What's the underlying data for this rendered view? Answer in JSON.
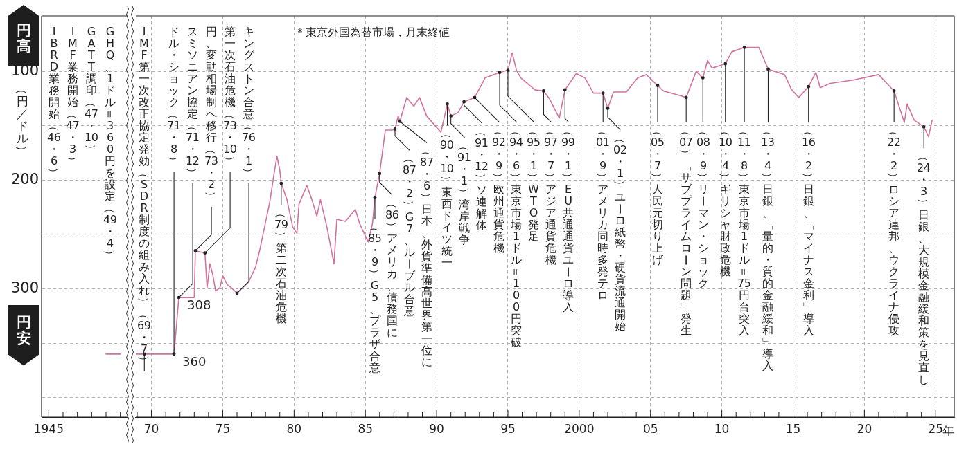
{
  "chart_data": [
    {
      "type": "line",
      "color": "#d4729f",
      "ylabel": "（円／ドル）",
      "categories": [
        "1945",
        null,
        null,
        null,
        null,
        null
      ],
      "ylim": [
        418,
        49
      ],
      "grid": "y",
      "yticks": [
        100,
        {
          "value": 150,
          "label": null
        },
        200,
        {
          "value": 250,
          "label": null
        },
        300,
        {
          "value": 350,
          "label": null
        },
        {
          "value": 400,
          "label": null
        }
      ],
      "values": [
        null,
        null,
        null,
        null,
        360,
        360
      ],
      "annotations": [
        "円高",
        "円安",
        "IBRD業務開始（46・6）",
        "IMF業務開始（47・3）",
        "GATT調印（47・10）",
        "GHQ、1ドル＝360円を設定（49・4）"
      ]
    },
    {
      "type": "line",
      "color": "#d4729f",
      "tick_labels": "x",
      "xlim": [
        1968.9,
        2026.3
      ],
      "ylim": [
        418,
        49
      ],
      "grid": true,
      "xticks": [
        {
          "value": 1969,
          "label": null
        },
        {
          "value": 1970,
          "label": "70"
        },
        {
          "value": 1971,
          "label": null
        },
        {
          "value": 1972,
          "label": null
        },
        {
          "value": 1973,
          "label": null
        },
        {
          "value": 1974,
          "label": null
        },
        {
          "value": 1975,
          "label": "75"
        },
        {
          "value": 1976,
          "label": null
        },
        {
          "value": 1977,
          "label": null
        },
        {
          "value": 1978,
          "label": null
        },
        {
          "value": 1979,
          "label": null
        },
        {
          "value": 1980,
          "label": "80"
        },
        {
          "value": 1981,
          "label": null
        },
        {
          "value": 1982,
          "label": null
        },
        {
          "value": 1983,
          "label": null
        },
        {
          "value": 1984,
          "label": null
        },
        {
          "value": 1985,
          "label": "85"
        },
        {
          "value": 1986,
          "label": null
        },
        {
          "value": 1987,
          "label": null
        },
        {
          "value": 1988,
          "label": null
        },
        {
          "value": 1989,
          "label": null
        },
        {
          "value": 1990,
          "label": "90"
        },
        {
          "value": 1991,
          "label": null
        },
        {
          "value": 1992,
          "label": null
        },
        {
          "value": 1993,
          "label": null
        },
        {
          "value": 1994,
          "label": null
        },
        {
          "value": 1995,
          "label": "95"
        },
        {
          "value": 1996,
          "label": null
        },
        {
          "value": 1997,
          "label": null
        },
        {
          "value": 1998,
          "label": null
        },
        {
          "value": 1999,
          "label": null
        },
        2000,
        {
          "value": 2001,
          "label": null
        },
        {
          "value": 2002,
          "label": null
        },
        {
          "value": 2003,
          "label": null
        },
        {
          "value": 2004,
          "label": null
        },
        {
          "value": 2005,
          "label": "05"
        },
        {
          "value": 2006,
          "label": null
        },
        {
          "value": 2007,
          "label": null
        },
        {
          "value": 2008,
          "label": null
        },
        {
          "value": 2009,
          "label": null
        },
        {
          "value": 2010,
          "label": "10"
        },
        {
          "value": 2011,
          "label": null
        },
        {
          "value": 2012,
          "label": null
        },
        {
          "value": 2013,
          "label": null
        },
        {
          "value": 2014,
          "label": null
        },
        {
          "value": 2015,
          "label": "15"
        },
        {
          "value": 2016,
          "label": null
        },
        {
          "value": 2017,
          "label": null
        },
        {
          "value": 2018,
          "label": null
        },
        {
          "value": 2019,
          "label": null
        },
        {
          "value": 2020,
          "label": "20"
        },
        {
          "value": 2021,
          "label": null
        },
        {
          "value": 2022,
          "label": null
        },
        {
          "value": 2023,
          "label": null
        },
        {
          "value": 2024,
          "label": null
        },
        {
          "value": 2025,
          "label": "25"
        }
      ],
      "xlabel": "年",
      "yticks": [
        100,
        {
          "value": 150,
          "label": null
        },
        200,
        {
          "value": 250,
          "label": null
        },
        300,
        {
          "value": 350,
          "label": null
        },
        {
          "value": 400,
          "label": null
        }
      ],
      "x": [
        1968.9,
        1971.58,
        1971.92,
        1973.0,
        1973.08,
        1973.75,
        1973.9,
        1974.1,
        1974.3,
        1974.5,
        1974.8,
        1975.0,
        1975.3,
        1975.6,
        1976.0,
        1976.3,
        1976.8,
        1977.3,
        1977.6,
        1977.9,
        1978.3,
        1978.6,
        1978.8,
        1979.0,
        1979.1,
        1979.5,
        1979.9,
        1980.2,
        1980.35,
        1980.9,
        1981.25,
        1981.6,
        1981.85,
        1982.3,
        1982.8,
        1983.0,
        1983.6,
        1984.3,
        1984.6,
        1985.2,
        1985.5,
        1985.67,
        1986.0,
        1986.4,
        1986.9,
        1987.08,
        1987.3,
        1987.42,
        1987.9,
        1988.4,
        1988.8,
        1989.3,
        1990.3,
        1990.75,
        1991.0,
        1991.5,
        1991.92,
        1992.67,
        1993.4,
        1994.42,
        1995.0,
        1995.3,
        1995.6,
        1995.9,
        1996.9,
        1997.5,
        1997.9,
        1998.6,
        1999.0,
        1999.8,
        2000.4,
        2001.0,
        2001.67,
        2002.0,
        2002.4,
        2003.3,
        2004.1,
        2004.7,
        2005.5,
        2005.9,
        2007.0,
        2007.5,
        2008.2,
        2008.67,
        2009.0,
        2009.3,
        2010.25,
        2010.7,
        2011.58,
        2012.6,
        2013.25,
        2014.4,
        2014.9,
        2015.4,
        2016.08,
        2016.6,
        2016.9,
        2017.6,
        2019.2,
        2021.0,
        2022.08,
        2022.8,
        2023.0,
        2023.5,
        2024.17,
        2024.5,
        2024.75
      ],
      "values": [
        360,
        360,
        308,
        308,
        265,
        267,
        299,
        277,
        287,
        302,
        299,
        288,
        296,
        299,
        304,
        300,
        294,
        280,
        264,
        245,
        220,
        194,
        178,
        191,
        203,
        218,
        243,
        249,
        222,
        205,
        218,
        233,
        218,
        243,
        277,
        236,
        238,
        227,
        240,
        257,
        240,
        216,
        194,
        154,
        154,
        153,
        141,
        146,
        124,
        132,
        124,
        141,
        156,
        130,
        141,
        138,
        128,
        124,
        106,
        101,
        99,
        83,
        99,
        106,
        117,
        118,
        125,
        143,
        117,
        102,
        106,
        120,
        120,
        134,
        119,
        119,
        106,
        103,
        113,
        118,
        122,
        124,
        100,
        106,
        90,
        97,
        93,
        82,
        78,
        78,
        98,
        103,
        117,
        124,
        114,
        101,
        115,
        111,
        108,
        103,
        118,
        147,
        130,
        145,
        151,
        160,
        145
      ],
      "value_labels": [
        null,
        "360",
        "308",
        null,
        null,
        null,
        null,
        null,
        null,
        null,
        null,
        null,
        null,
        null,
        null,
        null,
        null,
        null,
        null,
        null,
        null,
        null,
        null,
        null,
        null,
        null,
        null,
        null,
        null,
        null,
        null,
        null,
        null,
        null,
        null,
        null,
        null,
        null,
        null,
        null,
        null,
        null,
        null,
        null,
        null,
        null,
        null,
        null,
        null,
        null,
        null,
        null,
        null,
        null,
        null,
        null,
        null,
        null,
        null,
        null,
        null,
        null,
        null,
        null,
        null,
        null,
        null,
        null,
        null,
        null,
        null,
        null,
        null,
        null,
        null,
        null,
        null,
        null,
        null,
        null,
        null,
        null,
        null,
        null,
        null,
        null,
        null,
        null,
        null,
        null,
        null,
        null,
        null,
        null,
        null,
        null,
        null,
        null,
        null,
        null,
        null,
        null,
        null,
        null,
        null,
        null,
        null
      ],
      "annotations": [
        "＊東京外国為替市場，月末終値",
        {
          "text": "IMF第一次改正協定発効（SDR制度の組み入れ）（69・7）",
          "x": 1969.5,
          "y": 360
        },
        {
          "text": "ドル・ショック（71・8）",
          "x": 1971.58,
          "y": 360
        },
        {
          "text": "スミソニアン協定（71・12）",
          "x": 1971.92,
          "y": 308
        },
        {
          "text": "円、変動相場制へ移行（73・2）",
          "x": 1973.08,
          "y": 265
        },
        {
          "text": "第一次石油危機（73・10）",
          "x": 1973.75,
          "y": 267
        },
        {
          "text": "キングストン合意（76・1）",
          "x": 1976.0,
          "y": 304
        },
        {
          "text": "（79）第二次石油危機",
          "x": 1979.1,
          "y": 203
        },
        {
          "text": "（85・9）G5、プラザ合意",
          "x": 1985.67,
          "y": 216
        },
        {
          "text": "（86）アメリカ、債務国に",
          "x": 1986.0,
          "y": 194
        },
        {
          "text": "（87・2）G7、ルーブル合意",
          "x": 1987.08,
          "y": 153
        },
        {
          "text": "（87・6）日本、外貨準備高世界第一位に",
          "x": 1987.42,
          "y": 146
        },
        {
          "text": "（90・10）東西ドイツ統一",
          "x": 1990.75,
          "y": 130
        },
        {
          "text": "（91・1）湾岸戦争",
          "x": 1991.0,
          "y": 141
        },
        {
          "text": "（91・12）ソ連解体",
          "x": 1991.92,
          "y": 128
        },
        {
          "text": "（92・9）欧州通貨危機",
          "x": 1992.67,
          "y": 124
        },
        {
          "text": "（94・6）東京市場1ドル＝100円突破",
          "x": 1994.42,
          "y": 101
        },
        {
          "text": "（95・1）WTO発足",
          "x": 1995.0,
          "y": 99
        },
        {
          "text": "（97・7）アジア通貨危機",
          "x": 1997.5,
          "y": 118
        },
        {
          "text": "（99・1）EU共通通貨ユーロ導入",
          "x": 1999.0,
          "y": 117
        },
        {
          "text": "（01・9）アメリカ同時多発テロ",
          "x": 2001.67,
          "y": 120
        },
        {
          "text": "（02・1）ユーロ紙幣・硬貨流通開始",
          "x": 2002.0,
          "y": 134
        },
        {
          "text": "（05・7）人民元切り上げ",
          "x": 2005.5,
          "y": 113
        },
        {
          "text": "（07）「サブプライムローン問題」発生",
          "x": 2007.5,
          "y": 124
        },
        {
          "text": "（08・9）リーマン・ショック",
          "x": 2008.67,
          "y": 106
        },
        {
          "text": "（10・4）ギリシャ財政危機",
          "x": 2010.25,
          "y": 93
        },
        {
          "text": "（11・8）東京市場1ドル＝75円台突入",
          "x": 2011.58,
          "y": 78
        },
        {
          "text": "（13・4）日銀、「量的・質的金融緩和」導入",
          "x": 2013.25,
          "y": 98
        },
        {
          "text": "（16・2）日銀、「マイナス金利」導入",
          "x": 2016.08,
          "y": 114
        },
        {
          "text": "（22・2）ロシア連邦、ウクライナ侵攻",
          "x": 2022.08,
          "y": 118
        },
        {
          "text": "（24・3）日銀、大規模金融緩和策を見直し",
          "x": 2024.17,
          "y": 151
        }
      ]
    }
  ]
}
